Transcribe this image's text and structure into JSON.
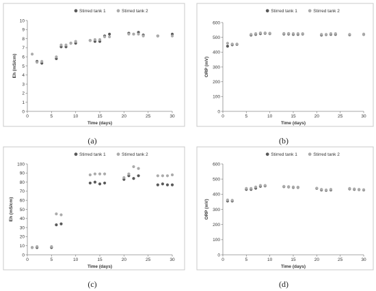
{
  "chart_data": [
    {
      "panel": "a",
      "caption": "(a)",
      "type": "scatter",
      "xlabel": "Time (days)",
      "ylabel": "Eh   (mS/cm)",
      "xlim": [
        0,
        30
      ],
      "ylim": [
        0,
        10
      ],
      "xticks": [
        0,
        5,
        10,
        15,
        20,
        25,
        30
      ],
      "yticks": [
        0,
        1,
        2,
        3,
        4,
        5,
        6,
        7,
        8,
        9,
        10
      ],
      "grid": false,
      "legend_position": "top-right",
      "series": [
        {
          "name": "Stirred tank 1",
          "color": "#595959",
          "x": [
            2,
            3,
            6,
            7,
            8,
            9,
            10,
            13,
            14,
            15,
            16,
            17,
            21,
            22,
            23,
            24,
            27,
            30
          ],
          "y": [
            5.5,
            5.3,
            5.8,
            7.1,
            7.1,
            7.5,
            7.5,
            7.8,
            7.7,
            7.7,
            8.3,
            8.5,
            8.6,
            8.5,
            8.7,
            8.4,
            8.3,
            8.5
          ]
        },
        {
          "name": "Stirred tank 2",
          "color": "#ababab",
          "x": [
            1,
            2,
            3,
            6,
            7,
            8,
            9,
            10,
            13,
            14,
            15,
            16,
            17,
            21,
            22,
            23,
            24,
            27,
            30
          ],
          "y": [
            6.3,
            5.4,
            5.5,
            6.0,
            7.3,
            7.3,
            7.5,
            7.7,
            7.8,
            7.9,
            7.9,
            8.2,
            8.2,
            8.5,
            8.5,
            8.5,
            8.3,
            8.3,
            8.3
          ]
        }
      ]
    },
    {
      "panel": "b",
      "caption": "(b)",
      "type": "scatter",
      "xlabel": "Time (days)",
      "ylabel": "ORP   (mV)",
      "xlim": [
        0,
        30
      ],
      "ylim": [
        0,
        600
      ],
      "xticks": [
        0,
        5,
        10,
        15,
        20,
        25,
        30
      ],
      "yticks": [
        0,
        100,
        200,
        300,
        400,
        500,
        600
      ],
      "grid": false,
      "legend_position": "top-right",
      "series": [
        {
          "name": "Stirred tank 1",
          "color": "#595959",
          "x": [
            1,
            2,
            3,
            6,
            7,
            8,
            9,
            10,
            13,
            14,
            15,
            16,
            17,
            21,
            22,
            23,
            24,
            27,
            30
          ],
          "y": [
            440,
            450,
            452,
            515,
            520,
            525,
            527,
            525,
            522,
            522,
            520,
            520,
            522,
            515,
            518,
            520,
            520,
            517,
            520
          ]
        },
        {
          "name": "Stirred tank 2",
          "color": "#ababab",
          "x": [
            1,
            2,
            3,
            6,
            7,
            8,
            9,
            10,
            13,
            14,
            15,
            16,
            17,
            21,
            22,
            23,
            24,
            27,
            30
          ],
          "y": [
            460,
            455,
            455,
            520,
            525,
            530,
            530,
            528,
            526,
            526,
            525,
            525,
            525,
            520,
            520,
            525,
            525,
            520,
            522
          ]
        }
      ]
    },
    {
      "panel": "c",
      "caption": "(c)",
      "type": "scatter",
      "xlabel": "Time (days)",
      "ylabel": "Eh (mS/cm)",
      "xlim": [
        0,
        30
      ],
      "ylim": [
        0,
        100
      ],
      "xticks": [
        0,
        5,
        10,
        15,
        20,
        25,
        30
      ],
      "yticks": [
        0,
        10,
        20,
        30,
        40,
        50,
        60,
        70,
        80,
        90,
        100
      ],
      "grid": false,
      "legend_position": "top-right",
      "series": [
        {
          "name": "Stirred tank 1",
          "color": "#595959",
          "x": [
            1,
            2,
            5,
            6,
            7,
            13,
            14,
            15,
            16,
            20,
            21,
            22,
            23,
            27,
            28,
            29,
            30
          ],
          "y": [
            8,
            8,
            8,
            33,
            34,
            79,
            80,
            78,
            79,
            83,
            87,
            84,
            87,
            77,
            78,
            77,
            77
          ]
        },
        {
          "name": "Stirred tank 2",
          "color": "#ababab",
          "x": [
            1,
            2,
            5,
            6,
            7,
            13,
            14,
            15,
            16,
            20,
            21,
            22,
            23,
            27,
            28,
            29,
            30
          ],
          "y": [
            8,
            9,
            9,
            45,
            44,
            88,
            89,
            89,
            89,
            85,
            89,
            97,
            95,
            87,
            87,
            87,
            88
          ]
        }
      ]
    },
    {
      "panel": "d",
      "caption": "(d)",
      "type": "scatter",
      "xlabel": "Time (days)",
      "ylabel": "ORP   (mV)",
      "xlim": [
        0,
        30
      ],
      "ylim": [
        0,
        600
      ],
      "xticks": [
        0,
        5,
        10,
        15,
        20,
        25,
        30
      ],
      "yticks": [
        0,
        100,
        200,
        300,
        400,
        500,
        600
      ],
      "grid": false,
      "legend_position": "top-right",
      "series": [
        {
          "name": "Stirred tank 1",
          "color": "#595959",
          "x": [
            1,
            2,
            5,
            6,
            7,
            8,
            9,
            13,
            14,
            15,
            16,
            20,
            21,
            22,
            23,
            27,
            28,
            29,
            30
          ],
          "y": [
            355,
            355,
            432,
            432,
            440,
            452,
            455,
            450,
            448,
            445,
            445,
            438,
            428,
            425,
            428,
            435,
            432,
            430,
            428
          ]
        },
        {
          "name": "Stirred tank 2",
          "color": "#ababab",
          "x": [
            1,
            2,
            5,
            6,
            7,
            8,
            9,
            13,
            14,
            15,
            16,
            20,
            21,
            22,
            23,
            27,
            28,
            29,
            30
          ],
          "y": [
            362,
            360,
            438,
            438,
            448,
            458,
            458,
            452,
            450,
            448,
            447,
            440,
            432,
            428,
            432,
            438,
            435,
            432,
            430
          ]
        }
      ]
    }
  ]
}
